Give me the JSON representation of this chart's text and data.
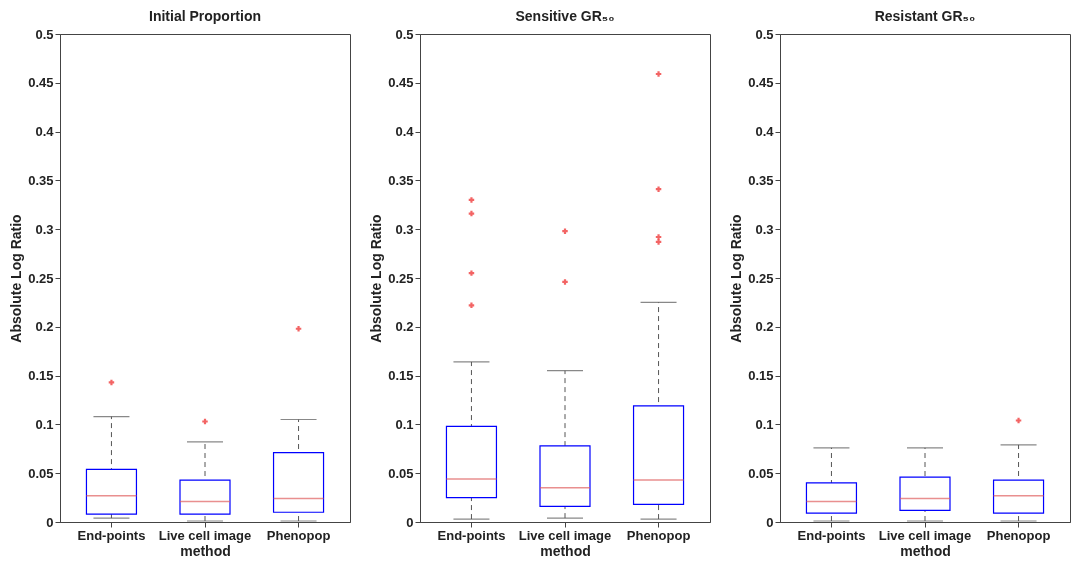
{
  "chart_data": [
    {
      "type": "box",
      "title": "Initial Proportion",
      "xlabel": "method",
      "ylabel": "Absolute Log Ratio",
      "categories": [
        "End-points",
        "Live cell image",
        "Phenopop"
      ],
      "ylim": [
        0,
        0.5
      ],
      "yticks": [
        0,
        0.05,
        0.1,
        0.15,
        0.2,
        0.25,
        0.3,
        0.35,
        0.4,
        0.45,
        0.5
      ],
      "grid": false,
      "series": [
        {
          "color": "#0000ff",
          "boxes": [
            {
              "low": 0.004,
              "q1": 0.008,
              "median": 0.027,
              "q3": 0.054,
              "high": 0.108,
              "outliers": [
                0.143
              ]
            },
            {
              "low": 0.001,
              "q1": 0.008,
              "median": 0.021,
              "q3": 0.043,
              "high": 0.082,
              "outliers": [
                0.103
              ]
            },
            {
              "low": 0.001,
              "q1": 0.01,
              "median": 0.024,
              "q3": 0.071,
              "high": 0.105,
              "outliers": [
                0.198
              ]
            }
          ]
        }
      ]
    },
    {
      "type": "box",
      "title": "Sensitive GR₅₀",
      "xlabel": "method",
      "ylabel": "Absolute Log Ratio",
      "categories": [
        "End-points",
        "Live cell image",
        "Phenopop"
      ],
      "ylim": [
        0,
        0.5
      ],
      "yticks": [
        0,
        0.05,
        0.1,
        0.15,
        0.2,
        0.25,
        0.3,
        0.35,
        0.4,
        0.45,
        0.5
      ],
      "grid": false,
      "series": [
        {
          "color": "#0000ff",
          "boxes": [
            {
              "low": 0.003,
              "q1": 0.025,
              "median": 0.044,
              "q3": 0.098,
              "high": 0.164,
              "outliers": [
                0.222,
                0.255,
                0.316,
                0.33
              ]
            },
            {
              "low": 0.004,
              "q1": 0.016,
              "median": 0.035,
              "q3": 0.078,
              "high": 0.155,
              "outliers": [
                0.246,
                0.298
              ]
            },
            {
              "low": 0.003,
              "q1": 0.018,
              "median": 0.043,
              "q3": 0.119,
              "high": 0.225,
              "outliers": [
                0.287,
                0.292,
                0.341,
                0.459
              ]
            }
          ]
        }
      ]
    },
    {
      "type": "box",
      "title": "Resistant GR₅₀",
      "xlabel": "method",
      "ylabel": "Absolute Log Ratio",
      "categories": [
        "End-points",
        "Live cell image",
        "Phenopop"
      ],
      "ylim": [
        0,
        0.5
      ],
      "yticks": [
        0,
        0.05,
        0.1,
        0.15,
        0.2,
        0.25,
        0.3,
        0.35,
        0.4,
        0.45,
        0.5
      ],
      "grid": false,
      "series": [
        {
          "color": "#0000ff",
          "boxes": [
            {
              "low": 0.001,
              "q1": 0.009,
              "median": 0.021,
              "q3": 0.04,
              "high": 0.076
            },
            {
              "low": 0.001,
              "q1": 0.012,
              "median": 0.024,
              "q3": 0.046,
              "high": 0.076
            },
            {
              "low": 0.001,
              "q1": 0.009,
              "median": 0.027,
              "q3": 0.043,
              "high": 0.079,
              "outliers": [
                0.104
              ]
            }
          ]
        }
      ]
    }
  ]
}
